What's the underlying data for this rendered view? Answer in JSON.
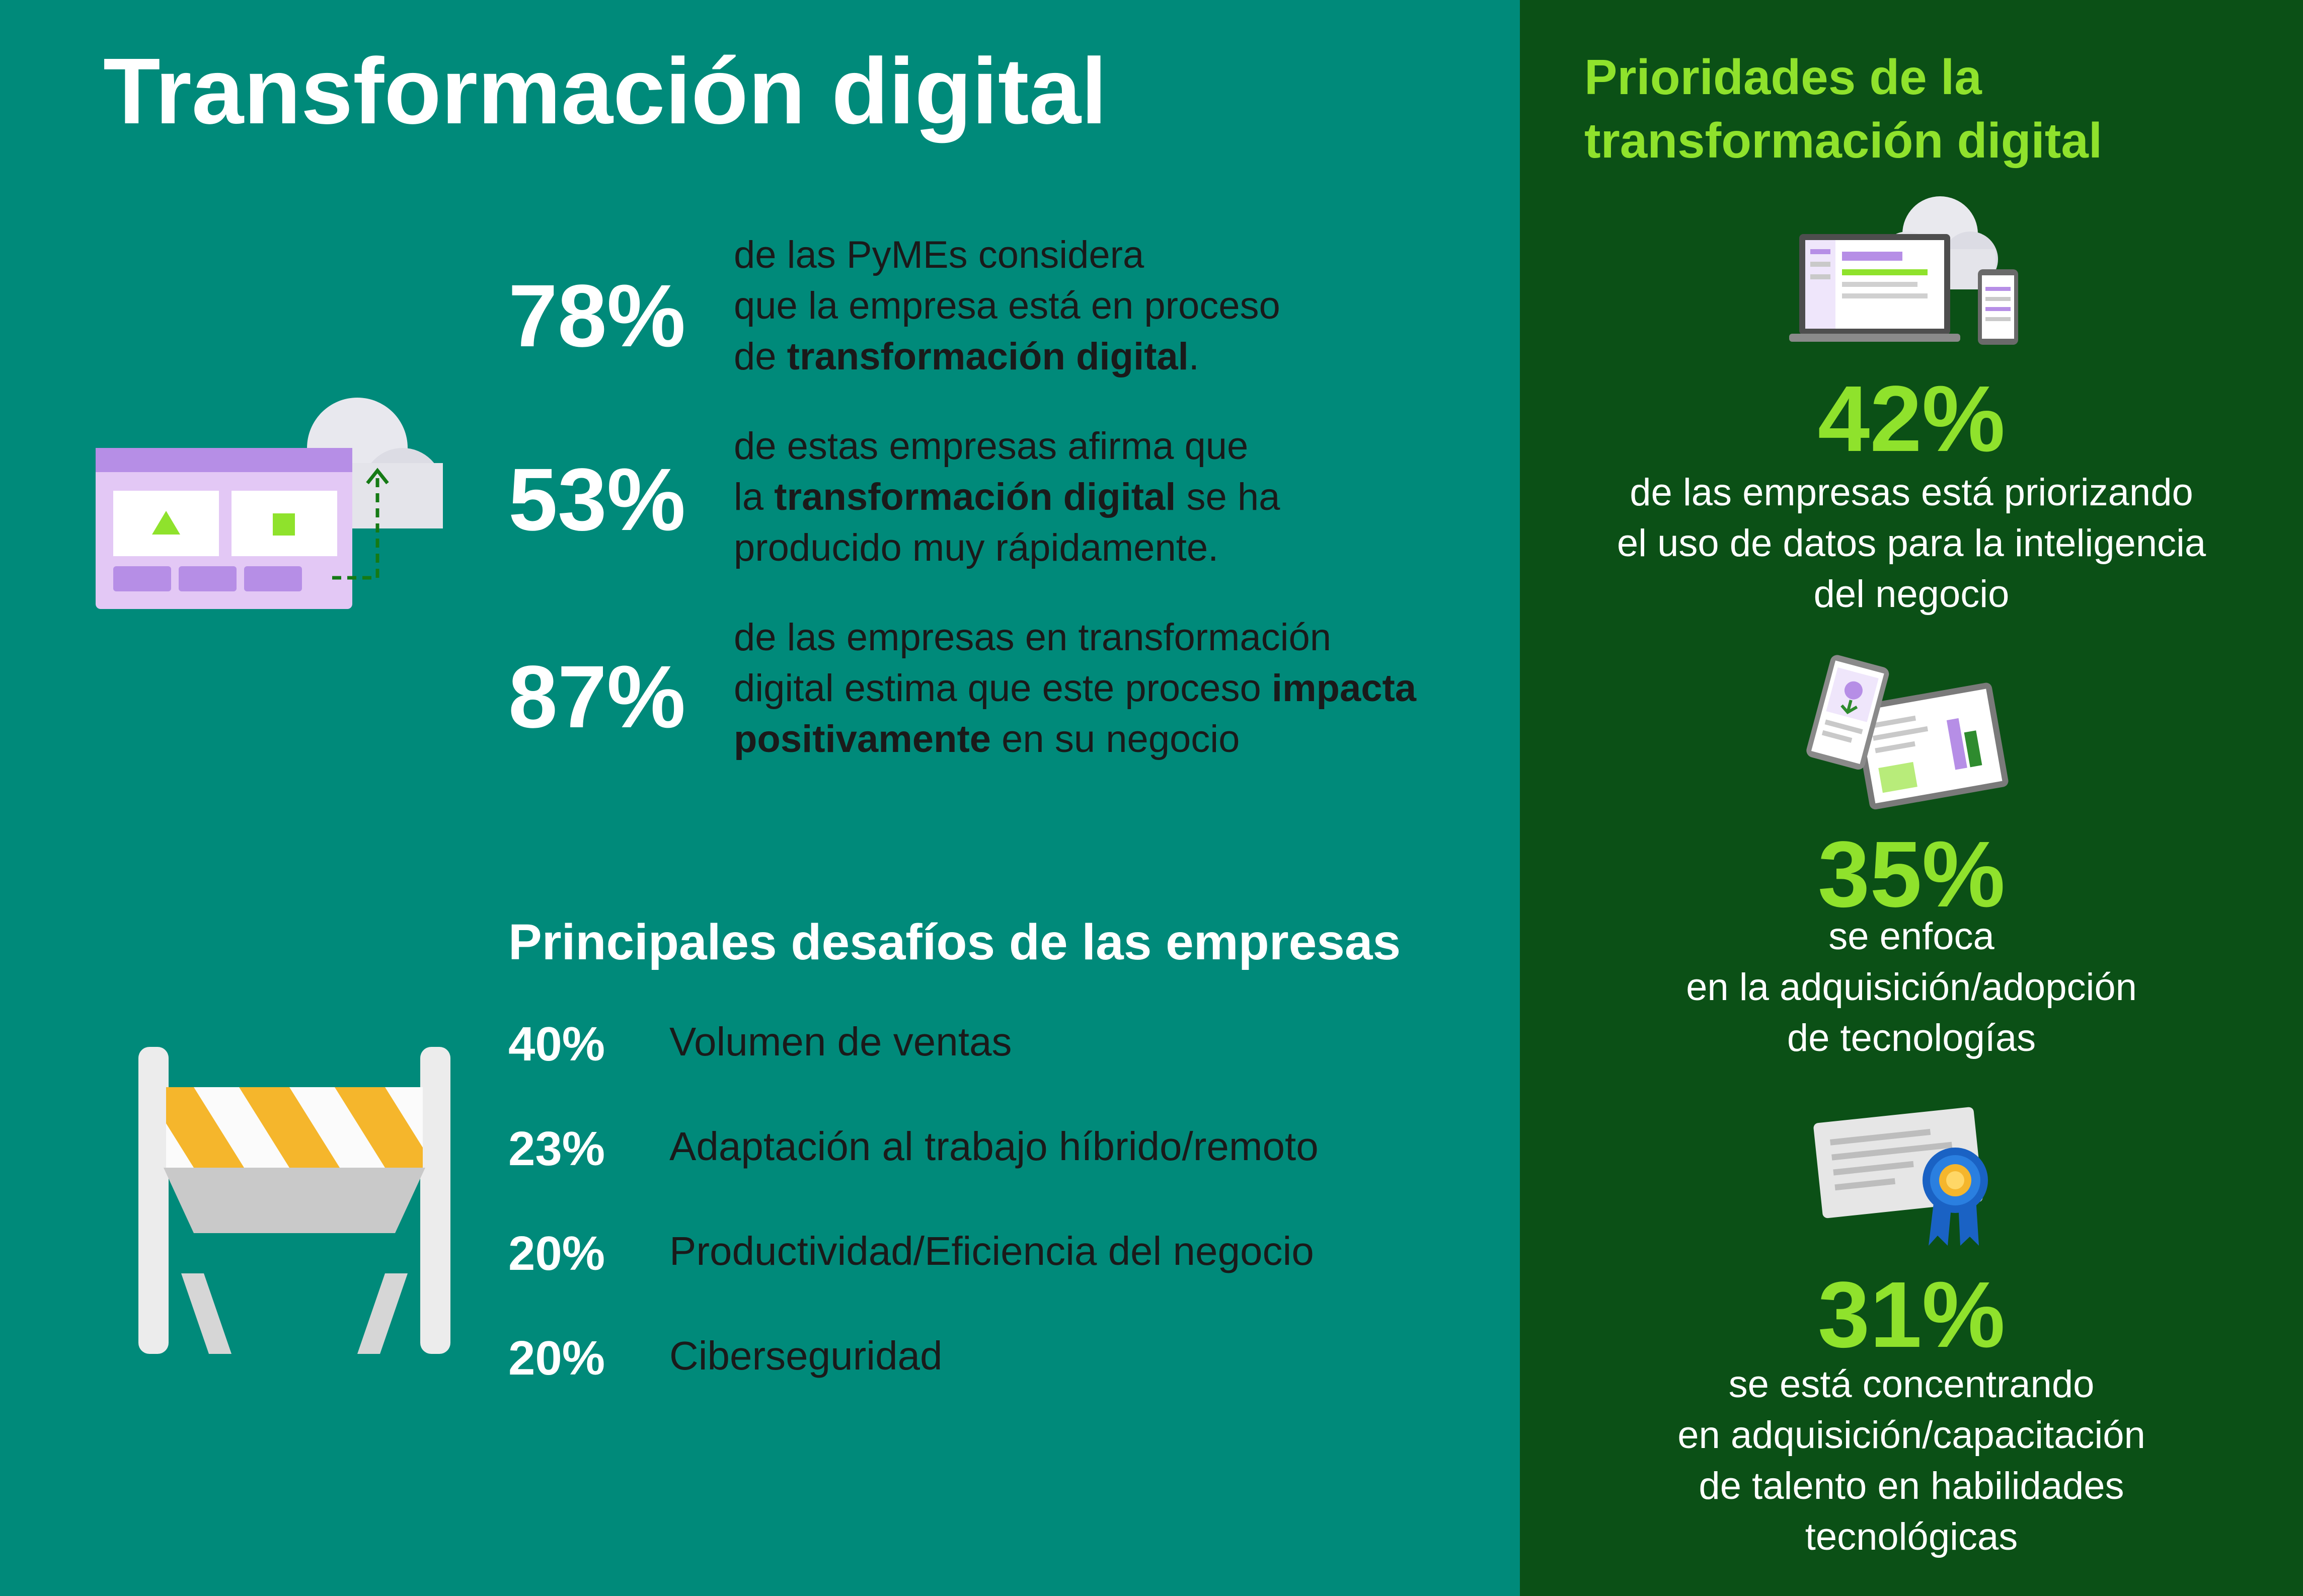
{
  "title": "Transformación digital",
  "stats": [
    {
      "value": "78%",
      "lines": [
        [
          {
            "t": "de las PyMEs considera",
            "b": false
          }
        ],
        [
          {
            "t": "que la empresa está en proceso",
            "b": false
          }
        ],
        [
          {
            "t": "de ",
            "b": false
          },
          {
            "t": "transformación digital",
            "b": true
          },
          {
            "t": ".",
            "b": false
          }
        ]
      ]
    },
    {
      "value": "53%",
      "lines": [
        [
          {
            "t": "de estas empresas afirma que",
            "b": false
          }
        ],
        [
          {
            "t": "la ",
            "b": false
          },
          {
            "t": "transformación digital",
            "b": true
          },
          {
            "t": " se ha",
            "b": false
          }
        ],
        [
          {
            "t": "producido muy rápidamente.",
            "b": false
          }
        ]
      ]
    },
    {
      "value": "87%",
      "lines": [
        [
          {
            "t": "de las empresas en transformación",
            "b": false
          }
        ],
        [
          {
            "t": "digital estima que este proceso ",
            "b": false
          },
          {
            "t": "impacta",
            "b": true
          }
        ],
        [
          {
            "t": "positivamente",
            "b": true
          },
          {
            "t": " en su negocio",
            "b": false
          }
        ]
      ]
    }
  ],
  "challenges": {
    "title": "Principales desafíos de las empresas",
    "items": [
      {
        "value": "40%",
        "label": "Volumen de ventas"
      },
      {
        "value": "23%",
        "label": "Adaptación al trabajo híbrido/remoto"
      },
      {
        "value": "20%",
        "label": "Productividad/Eficiencia del negocio"
      },
      {
        "value": "20%",
        "label": "Ciberseguridad"
      }
    ]
  },
  "priorities": {
    "title_lines": [
      "Prioridades de la",
      "transformación digital"
    ],
    "items": [
      {
        "value": "42%",
        "lines": [
          "de las empresas está priorizando",
          "el uso de datos para la inteligencia",
          "del negocio"
        ],
        "icon": "laptop-cloud-icon"
      },
      {
        "value": "35%",
        "lines": [
          "se enfoca",
          "en la adquisición/adopción",
          "de tecnologías"
        ],
        "icon": "tablet-report-icon"
      },
      {
        "value": "31%",
        "lines": [
          "se está concentrando",
          "en adquisición/capacitación",
          "de talento en habilidades",
          "tecnológicas"
        ],
        "icon": "certificate-badge-icon"
      }
    ]
  },
  "colors": {
    "left_bg": "#008a7a",
    "right_bg": "#0b5016",
    "accent_green": "#8fe22c",
    "white": "#ffffff",
    "dark_text": "#1a1a1a"
  }
}
